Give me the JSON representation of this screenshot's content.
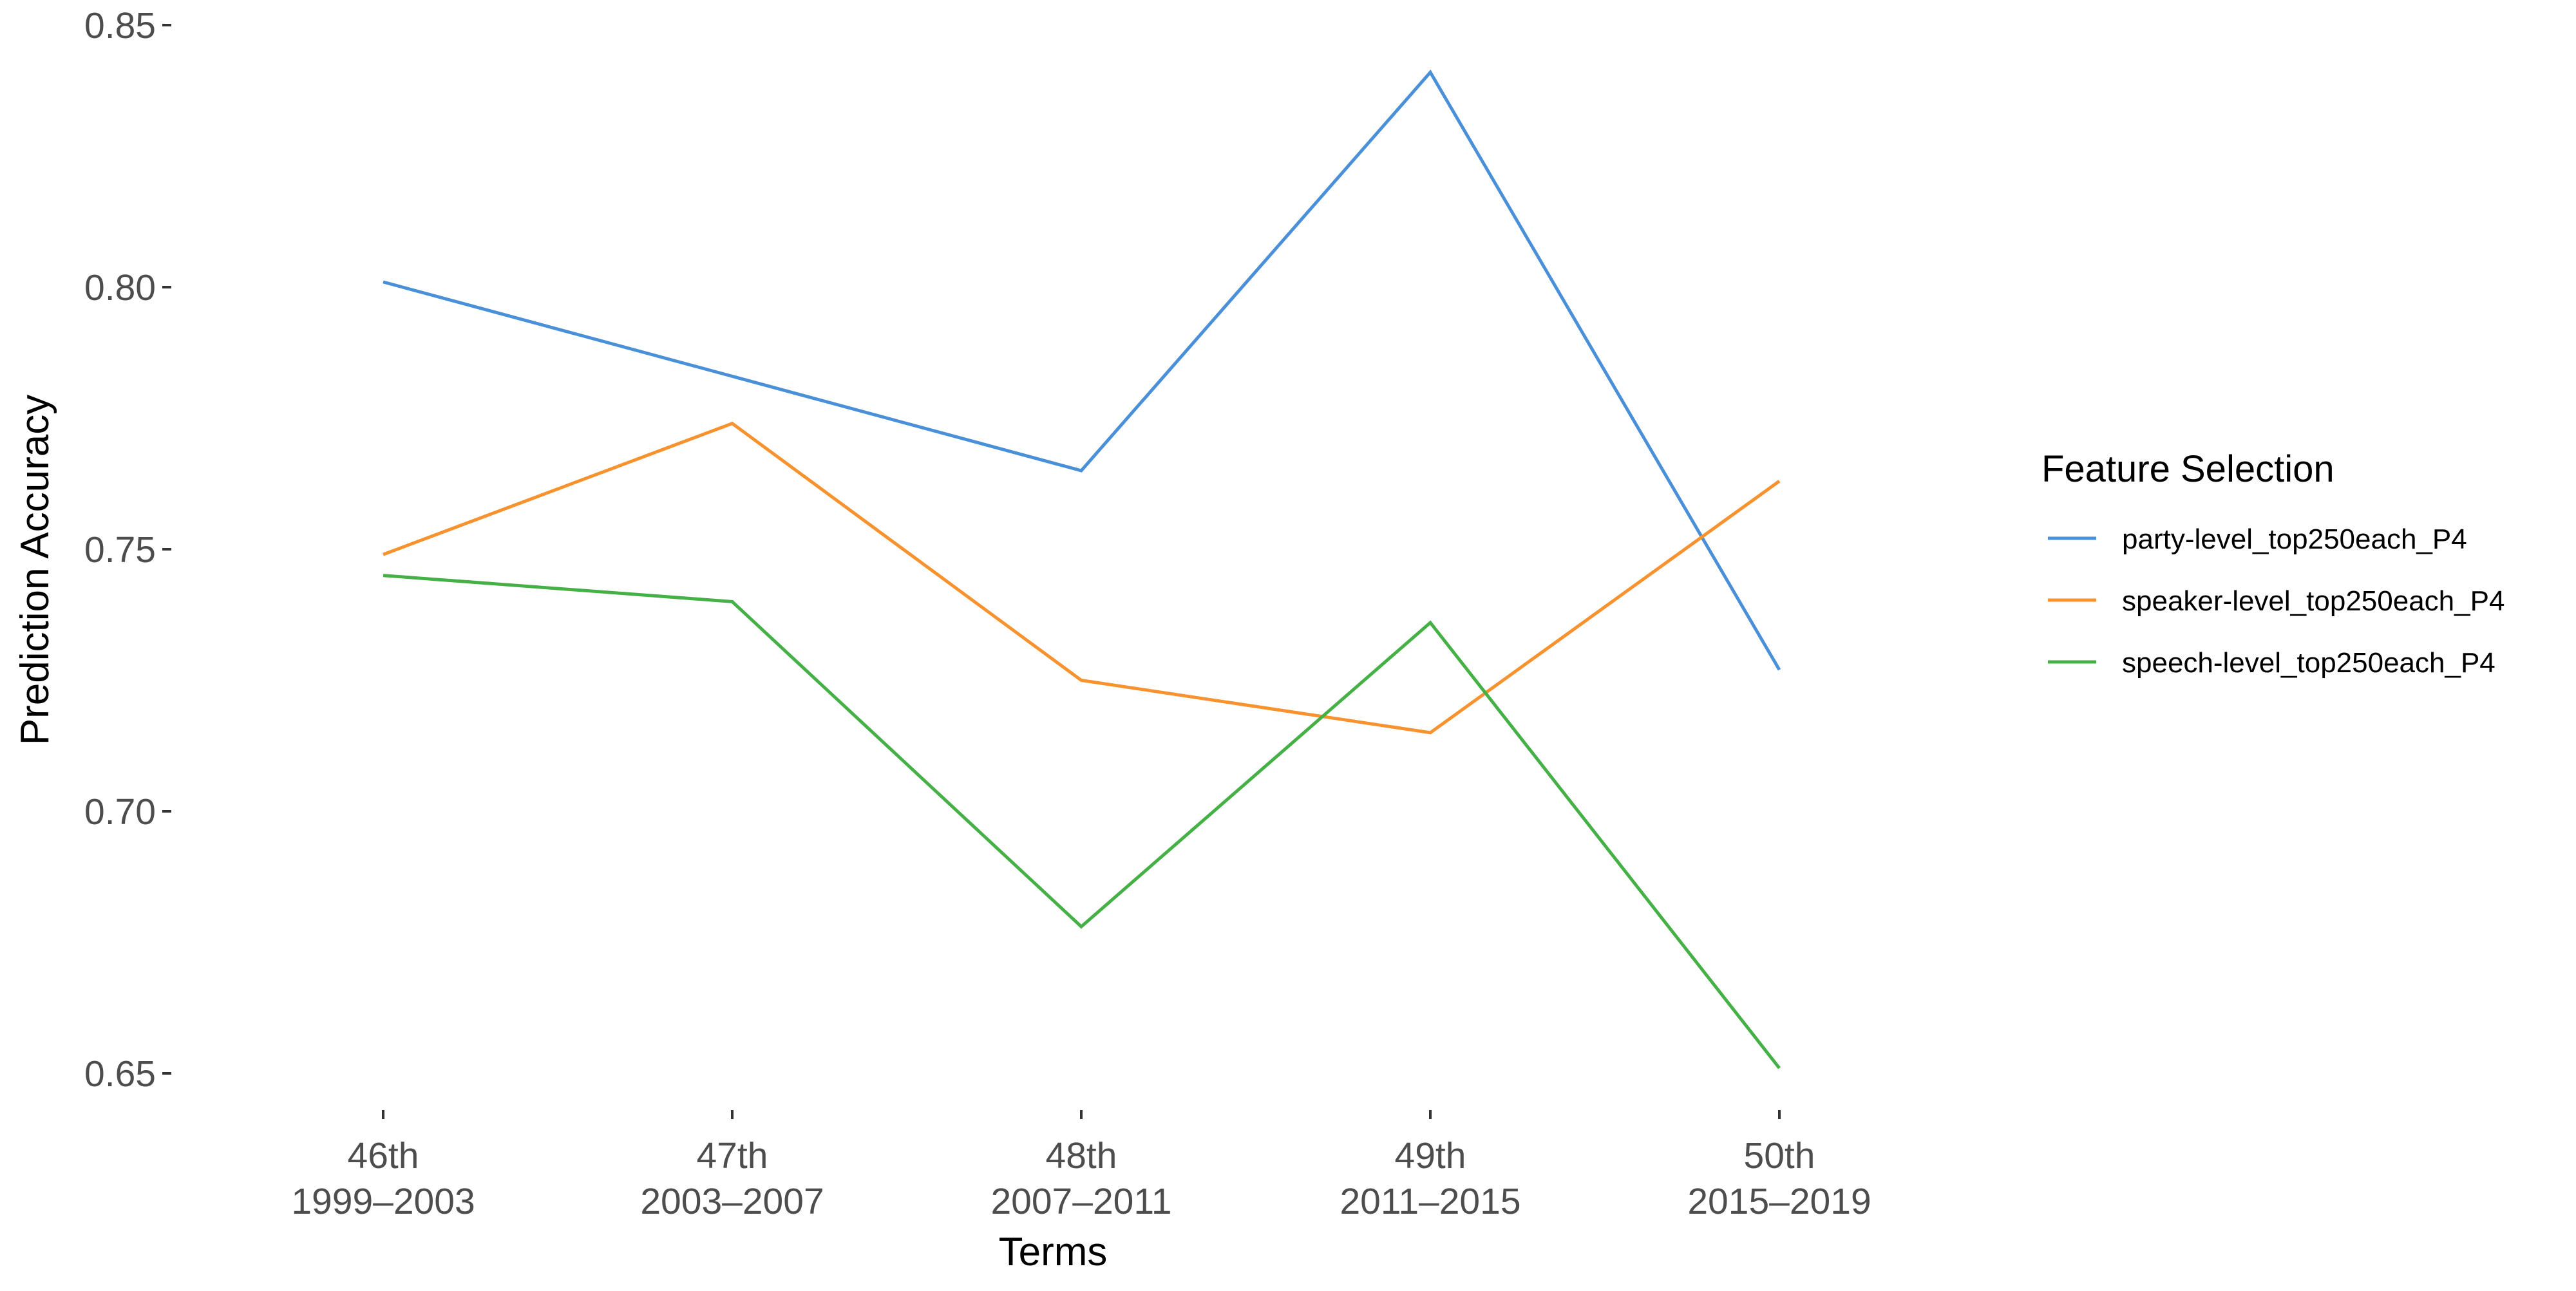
{
  "chart_data": {
    "type": "line",
    "xlabel": "Terms",
    "ylabel": "Prediction Accuracy",
    "categories": [
      {
        "term": "46th",
        "years": "1999–2003"
      },
      {
        "term": "47th",
        "years": "2003–2007"
      },
      {
        "term": "48th",
        "years": "2007–2011"
      },
      {
        "term": "49th",
        "years": "2011–2015"
      },
      {
        "term": "50th",
        "years": "2015–2019"
      }
    ],
    "yticks": [
      "0.65",
      "0.70",
      "0.75",
      "0.80",
      "0.85"
    ],
    "ylim": [
      0.65,
      0.85
    ],
    "grid": false,
    "legend": {
      "title": "Feature Selection",
      "position": "right"
    },
    "series": [
      {
        "name": "party-level_top250each_P4",
        "color": "#4a90d9",
        "values": [
          0.801,
          0.783,
          0.765,
          0.841,
          0.727
        ]
      },
      {
        "name": "speaker-level_top250each_P4",
        "color": "#f7922e",
        "values": [
          0.749,
          0.774,
          0.725,
          0.715,
          0.763
        ]
      },
      {
        "name": "speech-level_top250each_P4",
        "color": "#45b045",
        "values": [
          0.745,
          0.74,
          0.678,
          0.736,
          0.651
        ]
      }
    ]
  }
}
